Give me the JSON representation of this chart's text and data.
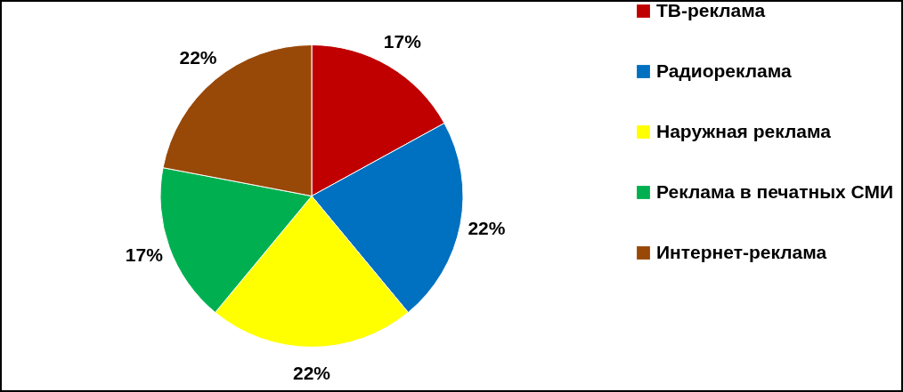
{
  "chart_data": {
    "type": "pie",
    "categories": [
      "ТВ-реклама",
      "Радиореклама",
      "Наружная реклама",
      "Реклама в печатных СМИ",
      "Интернет-реклама"
    ],
    "values": [
      17,
      22,
      22,
      17,
      22
    ],
    "value_labels": [
      "17%",
      "22%",
      "22%",
      "17%",
      "22%"
    ],
    "colors": [
      "#c00000",
      "#0070c0",
      "#ffff00",
      "#00b050",
      "#984807"
    ],
    "legend": "right"
  }
}
